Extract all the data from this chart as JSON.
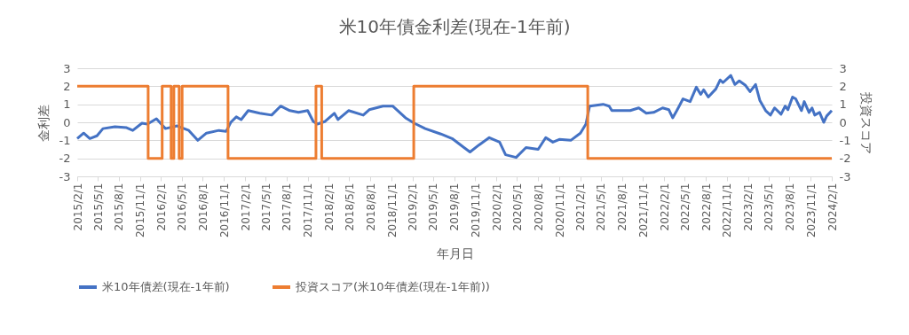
{
  "chart_data": {
    "type": "line",
    "title": "米10年債金利差(現在-1年前)",
    "xlabel": "年月日",
    "ylabel": "金利差",
    "y2label": "投資スコア",
    "xlim": [
      "2015-02-01",
      "2024-02-01"
    ],
    "xticks": [
      {
        "value": "2015-02-01",
        "label": "2015/2/1"
      },
      {
        "value": "2015-05-01",
        "label": "2015/5/1"
      },
      {
        "value": "2015-08-01",
        "label": "2015/8/1"
      },
      {
        "value": "2015-11-01",
        "label": "2015/11/1"
      },
      {
        "value": "2016-02-01",
        "label": "2016/2/1"
      },
      {
        "value": "2016-05-01",
        "label": "2016/5/1"
      },
      {
        "value": "2016-08-01",
        "label": "2016/8/1"
      },
      {
        "value": "2016-11-01",
        "label": "2016/11/1"
      },
      {
        "value": "2017-02-01",
        "label": "2017/2/1"
      },
      {
        "value": "2017-05-01",
        "label": "2017/5/1"
      },
      {
        "value": "2017-08-01",
        "label": "2017/8/1"
      },
      {
        "value": "2017-11-01",
        "label": "2017/11/1"
      },
      {
        "value": "2018-02-01",
        "label": "2018/2/1"
      },
      {
        "value": "2018-05-01",
        "label": "2018/5/1"
      },
      {
        "value": "2018-08-01",
        "label": "2018/8/1"
      },
      {
        "value": "2018-11-01",
        "label": "2018/11/1"
      },
      {
        "value": "2019-02-01",
        "label": "2019/2/1"
      },
      {
        "value": "2019-05-01",
        "label": "2019/5/1"
      },
      {
        "value": "2019-08-01",
        "label": "2019/8/1"
      },
      {
        "value": "2019-11-01",
        "label": "2019/11/1"
      },
      {
        "value": "2020-02-01",
        "label": "2020/2/1"
      },
      {
        "value": "2020-05-01",
        "label": "2020/5/1"
      },
      {
        "value": "2020-08-01",
        "label": "2020/8/1"
      },
      {
        "value": "2020-11-01",
        "label": "2020/11/1"
      },
      {
        "value": "2021-02-01",
        "label": "2021/2/1"
      },
      {
        "value": "2021-05-01",
        "label": "2021/5/1"
      },
      {
        "value": "2021-08-01",
        "label": "2021/8/1"
      },
      {
        "value": "2021-11-01",
        "label": "2021/11/1"
      },
      {
        "value": "2022-02-01",
        "label": "2022/2/1"
      },
      {
        "value": "2022-05-01",
        "label": "2022/5/1"
      },
      {
        "value": "2022-08-01",
        "label": "2022/8/1"
      },
      {
        "value": "2022-11-01",
        "label": "2022/11/1"
      },
      {
        "value": "2023-02-01",
        "label": "2023/2/1"
      },
      {
        "value": "2023-05-01",
        "label": "2023/5/1"
      },
      {
        "value": "2023-08-01",
        "label": "2023/8/1"
      },
      {
        "value": "2023-11-01",
        "label": "2023/11/1"
      },
      {
        "value": "2024-02-01",
        "label": "2024/2/1"
      }
    ],
    "ylim": [
      -3,
      3
    ],
    "yticks": [
      -3,
      -2,
      -1,
      0,
      1,
      2,
      3
    ],
    "y2lim": [
      -3,
      3
    ],
    "y2ticks": [
      -3,
      -2,
      -1,
      0,
      1,
      2,
      3
    ],
    "grid": "y",
    "legend": "bottom",
    "line_style": "solid",
    "series": [
      {
        "name": "米10年債差(現在-1年前)",
        "color": "#4472c4",
        "x": [
          "2015-02-01",
          "2015-03-01",
          "2015-03-28",
          "2015-04-28",
          "2015-05-24",
          "2015-07-15",
          "2015-09-04",
          "2015-10-01",
          "2015-11-10",
          "2015-12-04",
          "2016-01-12",
          "2016-02-20",
          "2016-04-11",
          "2016-06-01",
          "2016-07-10",
          "2016-08-17",
          "2016-10-10",
          "2016-11-11",
          "2016-12-01",
          "2016-12-25",
          "2017-01-15",
          "2017-02-15",
          "2017-04-06",
          "2017-05-28",
          "2017-07-06",
          "2017-08-15",
          "2017-09-22",
          "2017-11-01",
          "2017-11-25",
          "2017-12-13",
          "2018-01-16",
          "2018-02-25",
          "2018-03-13",
          "2018-04-28",
          "2018-07-01",
          "2018-07-27",
          "2018-09-25",
          "2018-11-06",
          "2019-01-01",
          "2019-02-08",
          "2019-03-28",
          "2019-06-04",
          "2019-07-23",
          "2019-09-13",
          "2019-10-09",
          "2019-11-18",
          "2020-01-01",
          "2020-02-15",
          "2020-03-12",
          "2020-04-27",
          "2020-06-09",
          "2020-08-01",
          "2020-09-03",
          "2020-10-04",
          "2020-11-01",
          "2020-12-21",
          "2021-02-01",
          "2021-02-25",
          "2021-03-13",
          "2021-05-11",
          "2021-06-06",
          "2021-06-18",
          "2021-09-06",
          "2021-10-13",
          "2021-11-15",
          "2021-12-17",
          "2022-01-25",
          "2022-02-21",
          "2022-03-10",
          "2022-03-28",
          "2022-04-24",
          "2022-05-25",
          "2022-06-21",
          "2022-07-10",
          "2022-07-23",
          "2022-08-12",
          "2022-09-14",
          "2022-10-03",
          "2022-10-15",
          "2022-11-18",
          "2022-12-06",
          "2022-12-25",
          "2023-01-21",
          "2023-02-10",
          "2023-03-06",
          "2023-03-25",
          "2023-04-19",
          "2023-05-10",
          "2023-05-28",
          "2023-06-25",
          "2023-07-13",
          "2023-07-25",
          "2023-08-14",
          "2023-08-28",
          "2023-09-22",
          "2023-10-04",
          "2023-10-25",
          "2023-11-07",
          "2023-11-19",
          "2023-12-10",
          "2023-12-28",
          "2024-01-10",
          "2024-02-01"
        ],
        "values": [
          -0.9,
          -0.6,
          -0.9,
          -0.75,
          -0.35,
          -0.25,
          -0.3,
          -0.45,
          -0.05,
          -0.1,
          0.2,
          -0.35,
          -0.2,
          -0.45,
          -1.0,
          -0.6,
          -0.45,
          -0.5,
          0,
          0.3,
          0.15,
          0.65,
          0.5,
          0.4,
          0.9,
          0.65,
          0.55,
          0.65,
          0.05,
          -0.1,
          0.05,
          0.5,
          0.15,
          0.65,
          0.4,
          0.7,
          0.9,
          0.9,
          0.25,
          -0.05,
          -0.35,
          -0.65,
          -0.9,
          -1.4,
          -1.65,
          -1.25,
          -0.85,
          -1.1,
          -1.8,
          -1.95,
          -1.4,
          -1.5,
          -0.85,
          -1.1,
          -0.95,
          -1.0,
          -0.6,
          -0.1,
          0.9,
          1.0,
          0.9,
          0.65,
          0.65,
          0.8,
          0.5,
          0.55,
          0.8,
          0.7,
          0.25,
          0.65,
          1.3,
          1.15,
          1.95,
          1.55,
          1.8,
          1.4,
          1.85,
          2.35,
          2.2,
          2.6,
          2.1,
          2.3,
          2.05,
          1.7,
          2.1,
          1.2,
          0.65,
          0.4,
          0.8,
          0.45,
          0.9,
          0.7,
          1.4,
          1.3,
          0.65,
          1.15,
          0.55,
          0.8,
          0.4,
          0.55,
          0,
          0.35,
          0.65
        ]
      },
      {
        "name": "投資スコア(米10年債差(現在-1年前))",
        "color": "#ed7d31",
        "type": "step",
        "axis": "y2",
        "x": [
          "2015-02-01",
          "2015-12-07",
          "2016-02-06",
          "2016-03-16",
          "2016-03-28",
          "2016-04-20",
          "2016-05-03",
          "2016-11-19",
          "2017-12-07",
          "2018-01-01",
          "2019-02-06",
          "2021-03-05",
          "2024-02-01"
        ],
        "values": [
          2,
          -2,
          2,
          -2,
          2,
          -2,
          2,
          -2,
          2,
          -2,
          2,
          -2,
          -2
        ]
      }
    ]
  }
}
